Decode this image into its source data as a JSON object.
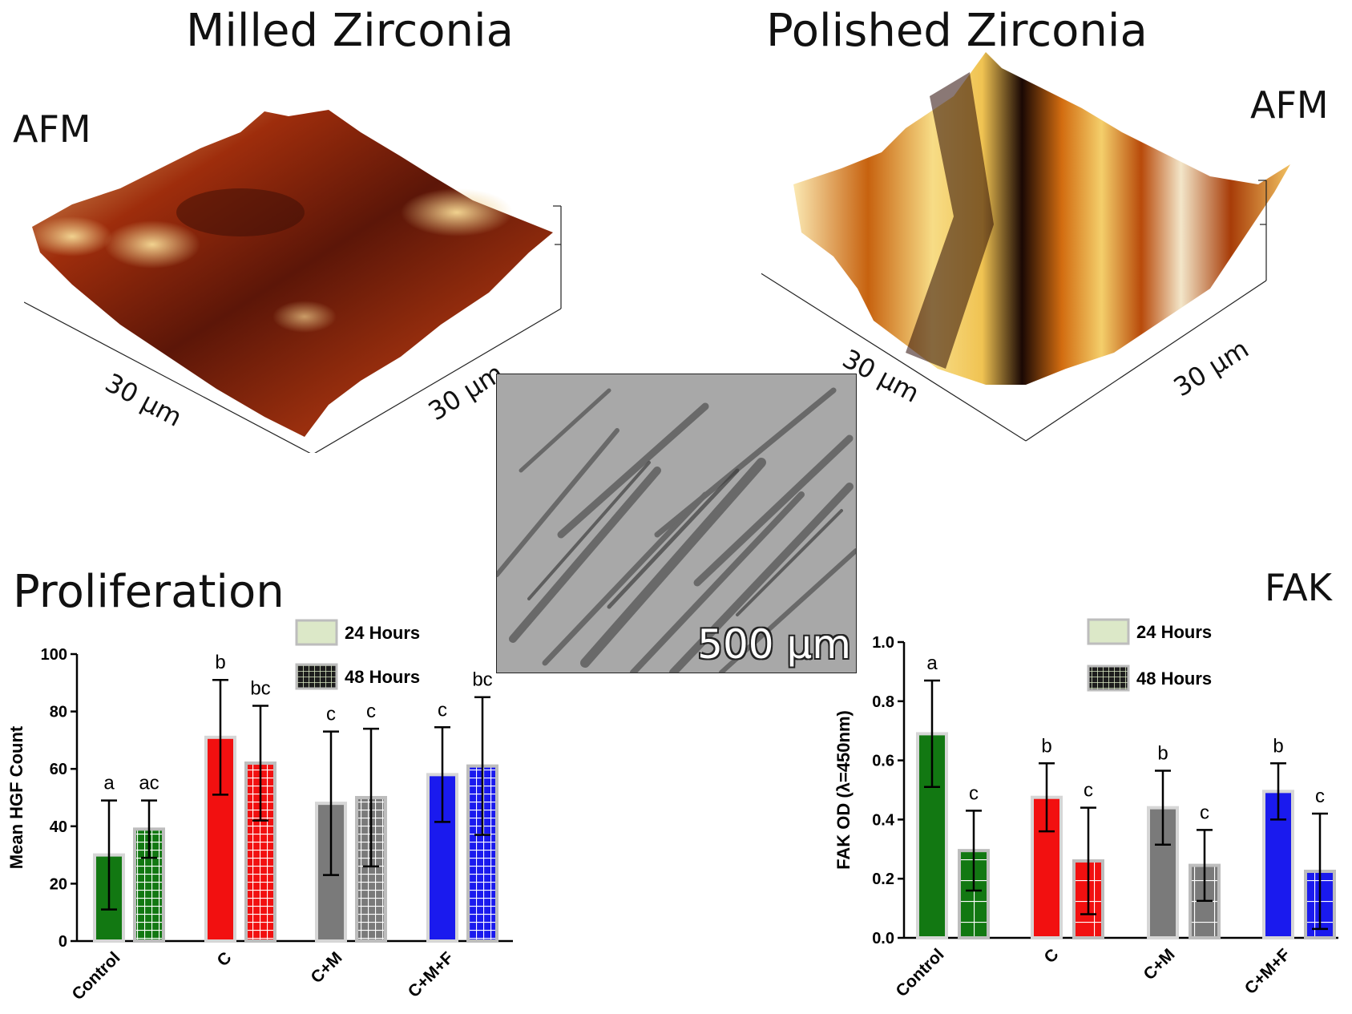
{
  "figure": {
    "title_left": "Milled Zirconia",
    "title_right": "Polished Zirconia",
    "afm_left_label": "AFM",
    "afm_right_label": "AFM",
    "afm_left_x": "30 μm",
    "afm_left_y": "30 μm",
    "afm_right_x": "30 μm",
    "afm_right_y": "30 μm",
    "panel_prolif_title": "Proliferation",
    "panel_fak_title": "FAK",
    "scale_bar": "500 μm"
  },
  "chart_data": [
    {
      "type": "bar",
      "name": "proliferation",
      "ylabel": "Mean HGF Count",
      "xlabel": "",
      "ylim": [
        0,
        100
      ],
      "yticks": [
        "0",
        "20",
        "40",
        "60",
        "80",
        "100"
      ],
      "categories": [
        "Control",
        "C",
        "C+M",
        "C+M+F"
      ],
      "category_colors": [
        "#127812",
        "#f21010",
        "#7a7a7a",
        "#1a1aee"
      ],
      "legend": [
        "24 Hours",
        "48 Hours"
      ],
      "legend_position": "top-right",
      "series": [
        {
          "name": "24 Hours",
          "values": [
            30,
            71,
            48,
            58
          ],
          "errors": [
            19,
            20,
            25,
            16.5
          ],
          "letters": [
            "a",
            "b",
            "c",
            "c"
          ]
        },
        {
          "name": "48 Hours",
          "values": [
            39,
            62,
            50,
            61
          ],
          "errors": [
            10,
            20,
            24,
            24
          ],
          "letters": [
            "ac",
            "bc",
            "c",
            "bc"
          ]
        }
      ]
    },
    {
      "type": "bar",
      "name": "fak",
      "ylabel": "FAK OD (λ=450nm)",
      "xlabel": "",
      "ylim": [
        0,
        1.0
      ],
      "yticks": [
        "0.0",
        "0.2",
        "0.4",
        "0.6",
        "0.8",
        "1.0"
      ],
      "categories": [
        "Control",
        "C",
        "C+M",
        "C+M+F"
      ],
      "category_colors": [
        "#127812",
        "#f21010",
        "#7a7a7a",
        "#1a1aee"
      ],
      "legend": [
        "24 Hours",
        "48 Hours"
      ],
      "legend_position": "top-right",
      "series": [
        {
          "name": "24 Hours",
          "values": [
            0.69,
            0.475,
            0.44,
            0.495
          ],
          "errors": [
            0.18,
            0.115,
            0.125,
            0.095
          ],
          "letters": [
            "a",
            "b",
            "b",
            "b"
          ]
        },
        {
          "name": "48 Hours",
          "values": [
            0.295,
            0.26,
            0.245,
            0.225
          ],
          "errors": [
            0.135,
            0.18,
            0.12,
            0.195
          ],
          "letters": [
            "c",
            "c",
            "c",
            "c"
          ]
        }
      ]
    }
  ]
}
